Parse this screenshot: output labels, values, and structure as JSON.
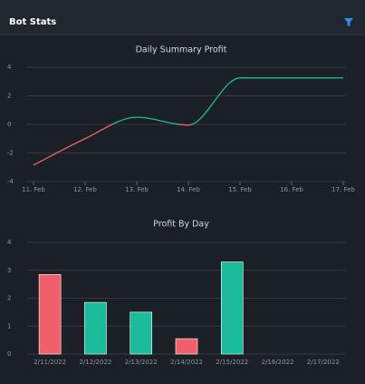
{
  "header": {
    "title": "Bot Stats"
  },
  "chart_data": [
    {
      "type": "line",
      "title": "Daily Summary Profit",
      "categories": [
        "11. Feb",
        "12. Feb",
        "13. Feb",
        "14. Feb",
        "15. Feb",
        "16. Feb",
        "17. Feb"
      ],
      "values": [
        -2.85,
        -1,
        0.5,
        -0.05,
        3.25,
        3.25,
        3.25
      ],
      "color": "#1abc9c",
      "negative_color": "#f0606c",
      "ylim": [
        -4,
        4
      ],
      "yticks": [
        -4,
        -2,
        0,
        2,
        4
      ],
      "grid": true
    },
    {
      "type": "bar",
      "title": "Profit By Day",
      "categories": [
        "2/11/2022",
        "2/12/2022",
        "2/13/2022",
        "2/14/2022",
        "2/15/2022",
        "2/16/2022",
        "2/17/2022"
      ],
      "values": [
        2.85,
        1.85,
        1.5,
        0.55,
        3.3,
        null,
        null
      ],
      "colors": [
        "#f0606c",
        "#1abc9c",
        "#1abc9c",
        "#f0606c",
        "#1abc9c",
        null,
        null
      ],
      "ylim": [
        0,
        4
      ],
      "yticks": [
        0,
        1,
        2,
        3,
        4
      ],
      "grid": true
    }
  ]
}
